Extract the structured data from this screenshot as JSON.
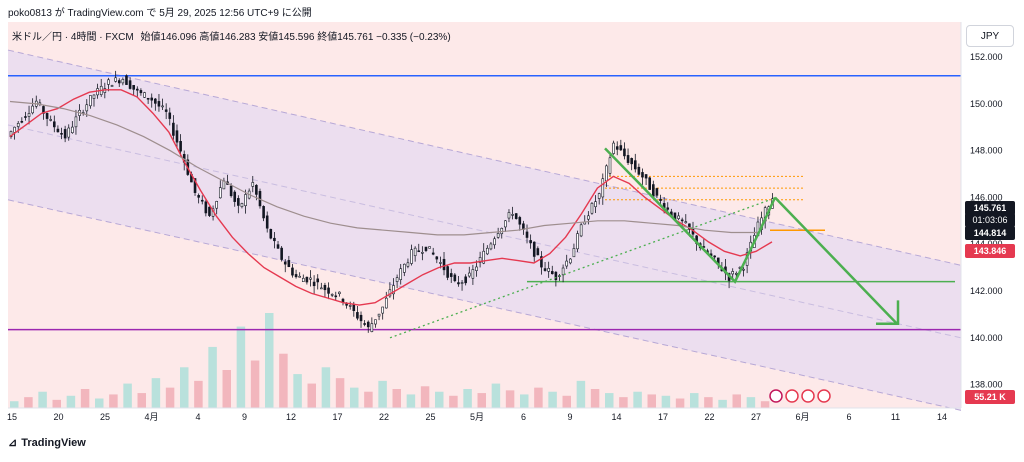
{
  "header": {
    "byline": "poko0813 が TradingView.com で 5月 29, 2025 12:56 UTC+9 に公開",
    "currency_label": "JPY"
  },
  "legend": {
    "symbol": "米ドル／円 · 4時間 · FXCM",
    "ohlc": "始値146.096 高値146.283 安値145.596 終値145.761 −0.335 (−0.23%)"
  },
  "price_labels": {
    "last": "145.761",
    "countdown": "01:03:06",
    "level_1": "144.814",
    "level_2": "143.846",
    "volume": "55.21 K"
  },
  "footer": {
    "brand": "TradingView"
  },
  "colors": {
    "up_candle": "#26a69a",
    "down_candle": "#131722",
    "ma_red": "#e53950",
    "ma_gray": "#9e8e8e",
    "resistance_blue": "#2962ff",
    "support_purple": "#9c27b0",
    "channel_fill": "#e9dcf0",
    "arrow_green": "#4caf50",
    "dotted_orange": "#ff9800",
    "last_price_bg": "#131722",
    "level_2_bg": "#e53950",
    "volume_bg": "#e53950"
  },
  "chart_data": {
    "type": "line",
    "title": "",
    "xlabel": "",
    "ylabel": "",
    "ylim": [
      137.0,
      153.5
    ],
    "y_ticks": [
      "152.000",
      "150.000",
      "148.000",
      "146.000",
      "144.000",
      "142.000",
      "140.000",
      "138.000"
    ],
    "x_ticks": [
      "15",
      "20",
      "25",
      "4月",
      "4",
      "9",
      "12",
      "17",
      "22",
      "25",
      "5月",
      "6",
      "9",
      "14",
      "17",
      "22",
      "27",
      "6月",
      "6",
      "11",
      "14"
    ],
    "grid": false,
    "series": [
      {
        "values": [
          148.6,
          149.4,
          150.1,
          149.2,
          148.6,
          149.6,
          150.4,
          150.9,
          151.1,
          150.5,
          150.2,
          149.6,
          148.0,
          146.2,
          145.2,
          146.8,
          145.5,
          146.6,
          144.6,
          143.4,
          142.6,
          142.5,
          142.1,
          141.8,
          141.1,
          140.4,
          141.3,
          142.6,
          143.6,
          143.9,
          143.2,
          142.3,
          142.6,
          143.6,
          144.6,
          145.4,
          144.2,
          143.1,
          142.6,
          143.5,
          145.1,
          146.1,
          148.3,
          147.6,
          146.9,
          146.0,
          145.3,
          144.8,
          143.9,
          143.3,
          142.6,
          143.1,
          144.8,
          146.0
        ]
      },
      {
        "values": [
          148.6,
          149.1,
          149.6,
          149.8,
          150.2,
          150.5,
          150.6,
          150.6,
          150.3,
          149.6,
          148.8,
          147.5,
          146.3,
          145.2,
          144.3,
          143.6,
          143.0,
          142.6,
          142.2,
          141.9,
          141.7,
          141.5,
          141.4,
          141.5,
          141.9,
          142.3,
          142.7,
          143.0,
          143.2,
          143.2,
          143.3,
          143.4,
          143.3,
          143.2,
          143.6,
          144.3,
          145.3,
          146.4,
          146.9,
          146.6,
          146.0,
          145.5,
          145.0,
          144.6,
          144.1,
          143.7,
          143.5,
          143.7,
          144.1
        ]
      },
      {
        "values": [
          150.1,
          150.0,
          149.8,
          149.5,
          149.1,
          148.6,
          148.0,
          147.3,
          146.7,
          146.1,
          145.6,
          145.2,
          144.9,
          144.7,
          144.6,
          144.5,
          144.4,
          144.4,
          144.5,
          144.6,
          144.8,
          144.9,
          145.0,
          145.0,
          144.9,
          144.8,
          144.6,
          144.5,
          144.5
        ]
      }
    ],
    "levels": [
      151.2,
      140.35,
      142.4,
      144.6
    ],
    "volume": [
      5,
      8,
      12,
      6,
      9,
      14,
      7,
      10,
      18,
      11,
      22,
      15,
      30,
      20,
      45,
      28,
      60,
      35,
      70,
      40,
      25,
      18,
      30,
      22,
      15,
      12,
      20,
      14,
      10,
      16,
      12,
      9,
      14,
      11,
      18,
      13,
      10,
      15,
      12,
      9,
      20,
      14,
      11,
      8,
      12,
      10,
      9,
      7,
      11,
      8,
      6,
      10,
      8,
      5
    ]
  }
}
